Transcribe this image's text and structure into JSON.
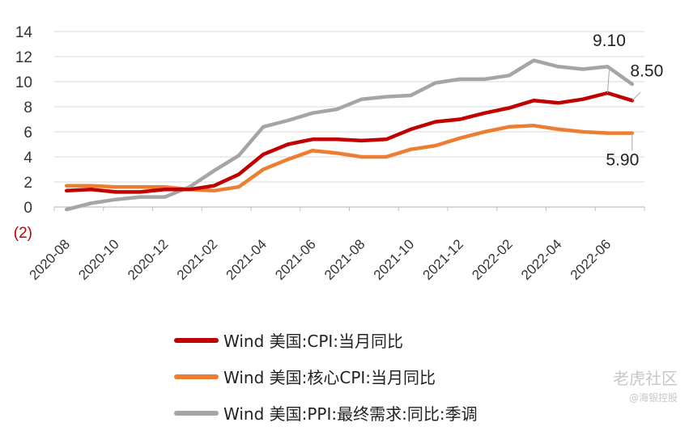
{
  "chart_data": {
    "type": "line",
    "title": "",
    "xlabel": "",
    "ylabel": "",
    "ylim": [
      -2,
      14
    ],
    "yticks": [
      -2,
      0,
      2,
      4,
      6,
      8,
      10,
      12,
      14
    ],
    "ytick_labels": [
      "(2)",
      "0",
      "2",
      "4",
      "6",
      "8",
      "10",
      "12",
      "14"
    ],
    "x": [
      "2020-08",
      "2020-09",
      "2020-10",
      "2020-11",
      "2020-12",
      "2021-01",
      "2021-02",
      "2021-03",
      "2021-04",
      "2021-05",
      "2021-06",
      "2021-07",
      "2021-08",
      "2021-09",
      "2021-10",
      "2021-11",
      "2021-12",
      "2022-01",
      "2022-02",
      "2022-03",
      "2022-04",
      "2022-05",
      "2022-06",
      "2022-07"
    ],
    "xtick_labels": [
      "2020-08",
      "2020-10",
      "2020-12",
      "2021-02",
      "2021-04",
      "2021-06",
      "2021-08",
      "2021-10",
      "2021-12",
      "2022-02",
      "2022-04",
      "2022-06"
    ],
    "grid": "horizontal",
    "legend_position": "bottom",
    "series": [
      {
        "name": "Wind 美国:CPI:当月同比",
        "color": "#c00000",
        "values": [
          1.3,
          1.4,
          1.2,
          1.2,
          1.4,
          1.4,
          1.7,
          2.6,
          4.2,
          5.0,
          5.4,
          5.4,
          5.3,
          5.4,
          6.2,
          6.8,
          7.0,
          7.5,
          7.9,
          8.5,
          8.3,
          8.6,
          9.1,
          8.5
        ]
      },
      {
        "name": "Wind 美国:核心CPI:当月同比",
        "color": "#ed7d31",
        "values": [
          1.7,
          1.7,
          1.6,
          1.6,
          1.6,
          1.4,
          1.3,
          1.6,
          3.0,
          3.8,
          4.5,
          4.3,
          4.0,
          4.0,
          4.6,
          4.9,
          5.5,
          6.0,
          6.4,
          6.5,
          6.2,
          6.0,
          5.9,
          5.9
        ]
      },
      {
        "name": "Wind 美国:PPI:最终需求:同比:季调",
        "color": "#a5a5a5",
        "values": [
          -0.2,
          0.3,
          0.6,
          0.8,
          0.8,
          1.6,
          2.9,
          4.1,
          6.4,
          6.9,
          7.5,
          7.8,
          8.6,
          8.8,
          8.9,
          9.9,
          10.2,
          10.2,
          10.5,
          11.7,
          11.2,
          11.0,
          11.2,
          9.8
        ]
      }
    ],
    "annotations": [
      {
        "text": "9.10",
        "series": 0,
        "x": "2022-06"
      },
      {
        "text": "8.50",
        "series": 0,
        "x": "2022-07"
      },
      {
        "text": "5.90",
        "series": 1,
        "x": "2022-07"
      }
    ]
  },
  "watermark": {
    "logo": "老虎社区",
    "sub": "@海银控股"
  }
}
